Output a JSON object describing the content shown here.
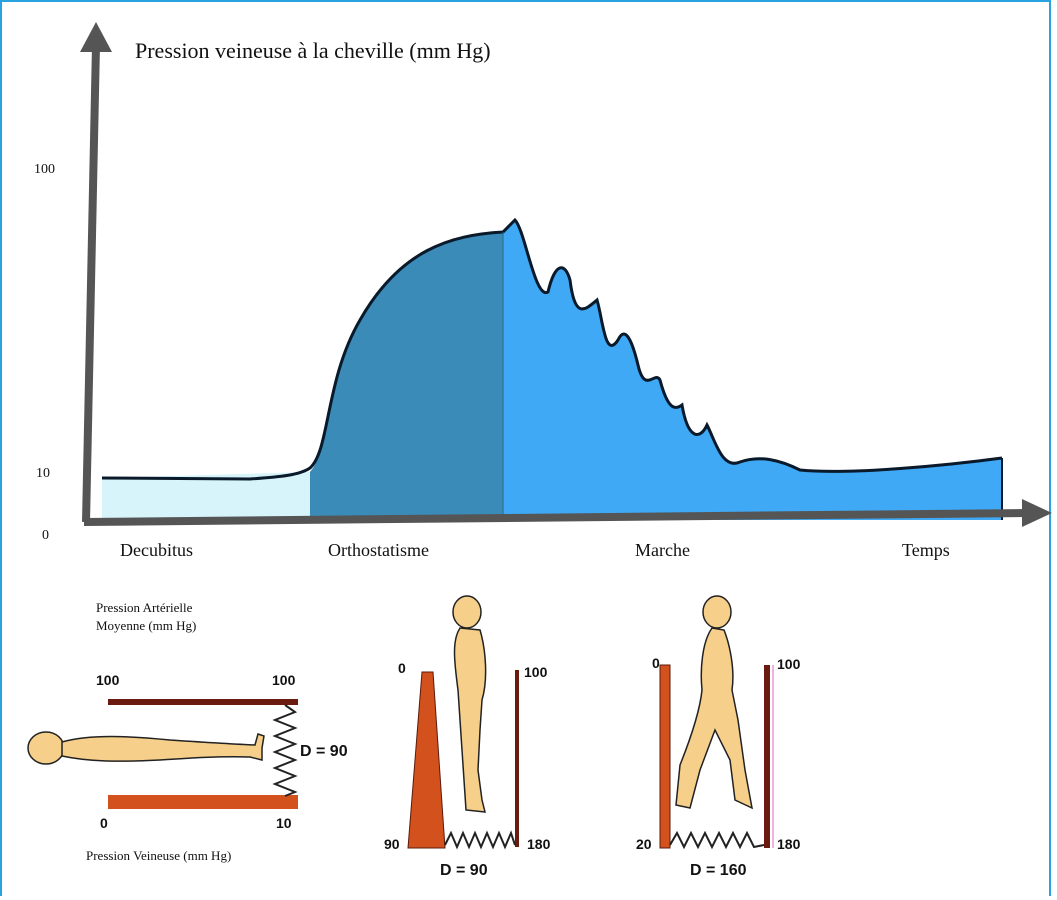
{
  "chart": {
    "ylabel": "Pression veineuse à la cheville (mm Hg)",
    "y_ticks": [
      "100",
      "10",
      "0"
    ],
    "phases": [
      "Decubitus",
      "Orthostatisme",
      "Marche",
      "Temps"
    ]
  },
  "chart_data": {
    "type": "area",
    "ylabel": "Pression veineuse à la cheville (mm Hg)",
    "y_tick_labels": [
      100,
      10,
      0
    ],
    "x_categories": [
      "Decubitus",
      "Orthostatisme",
      "Marche"
    ],
    "xlabel": "Temps",
    "series": [
      {
        "phase": "Decubitus",
        "approx_pressure_mmHg": 10
      },
      {
        "phase": "Orthostatisme",
        "approx_pressure_mmHg": 90
      },
      {
        "phase": "Marche",
        "approx_pressure_mmHg": 20
      }
    ],
    "colors": {
      "decubitus": "#d6f4fa",
      "orthostatisme": "#3a8bb8",
      "marche": "#3fa9f5"
    }
  },
  "lying": {
    "title_line1": "Pression Artérielle",
    "title_line2": "Moyenne (mm Hg)",
    "top_left": "100",
    "top_right": "100",
    "bottom_left": "0",
    "bottom_right": "10",
    "delta": "D = 90",
    "caption": "Pression Veineuse (mm Hg)"
  },
  "standing": {
    "top_left": "0",
    "top_right": "100",
    "bottom_left": "90",
    "bottom_right": "180",
    "delta": "D = 90"
  },
  "walking": {
    "top_left": "0",
    "top_right": "100",
    "bottom_left": "20",
    "bottom_right": "180",
    "delta": "D = 160"
  }
}
